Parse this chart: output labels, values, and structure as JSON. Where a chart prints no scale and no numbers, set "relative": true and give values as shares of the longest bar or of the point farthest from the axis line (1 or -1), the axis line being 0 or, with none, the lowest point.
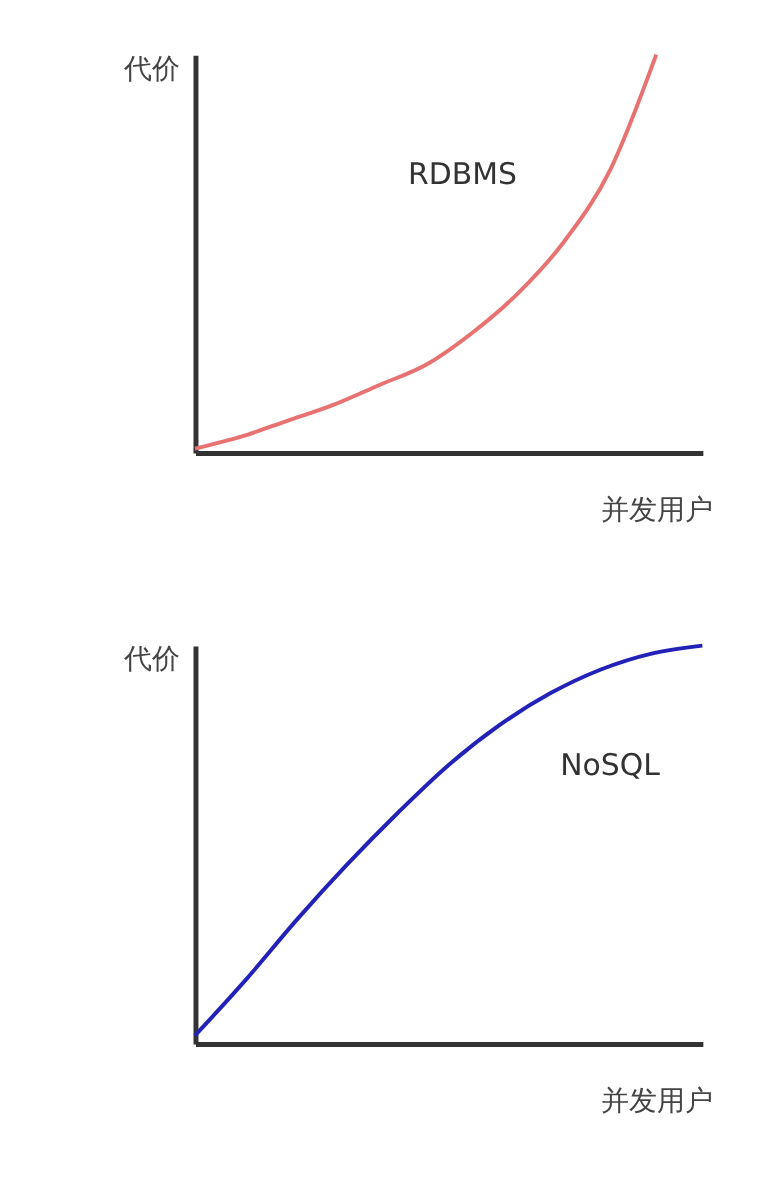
{
  "chart_data": [
    {
      "type": "line",
      "relative": true,
      "xlabel": "并发用户",
      "ylabel": "代价",
      "tick_labels": false,
      "grid": false,
      "marker": "none",
      "line_style": "solid",
      "categories": [
        null,
        null,
        null,
        null,
        null,
        null,
        null,
        null,
        null,
        null,
        null,
        null
      ],
      "series": [
        {
          "name": "RDBMS",
          "color": "#e87272",
          "values": [
            0.01,
            0.04,
            0.08,
            0.12,
            0.17,
            0.22,
            0.3,
            0.4,
            0.53,
            0.71,
            1,
            null
          ]
        }
      ]
    },
    {
      "type": "line",
      "relative": true,
      "xlabel": "并发用户",
      "ylabel": "代价",
      "tick_labels": false,
      "grid": false,
      "marker": "none",
      "line_style": "solid",
      "categories": [
        null,
        null,
        null,
        null,
        null,
        null,
        null,
        null,
        null,
        null,
        null
      ],
      "series": [
        {
          "name": "NoSQL",
          "color": "#2222b8",
          "values": [
            0.02,
            0.16,
            0.31,
            0.45,
            0.58,
            0.7,
            0.8,
            0.88,
            0.94,
            0.98,
            1
          ]
        }
      ]
    }
  ]
}
